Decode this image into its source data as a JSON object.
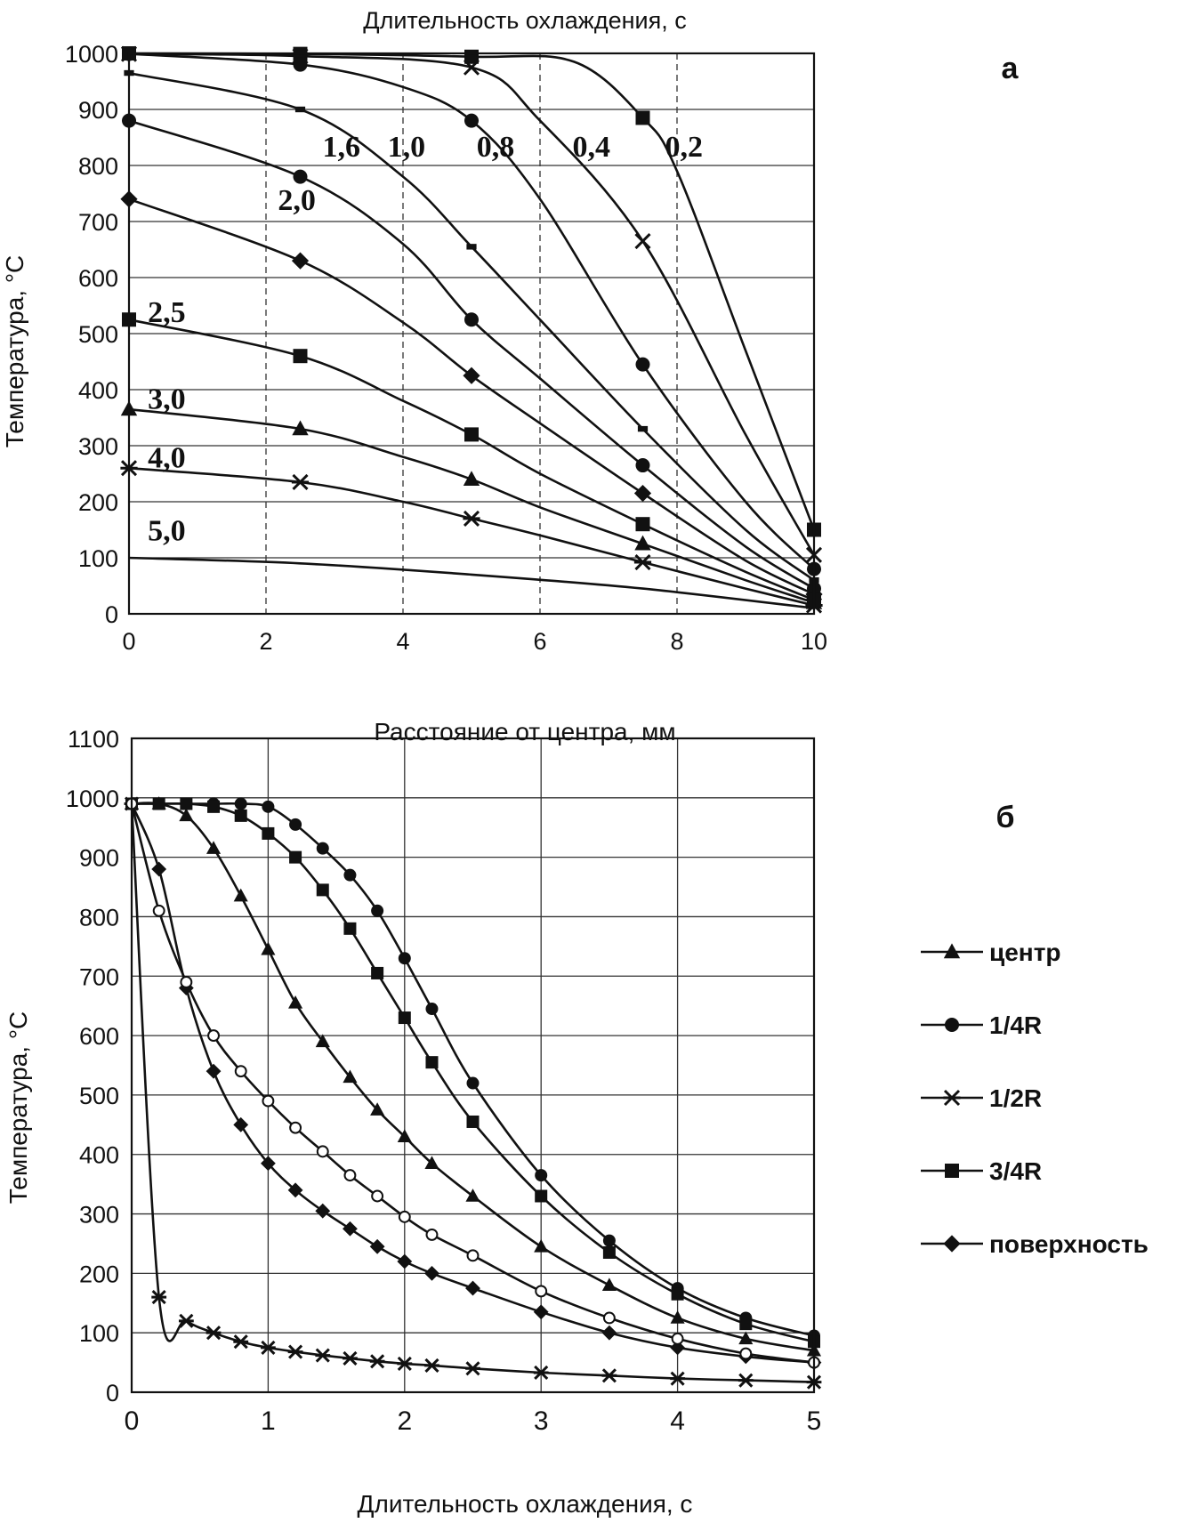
{
  "chart_data": [
    {
      "id": "a",
      "type": "line",
      "panel_label": "а",
      "title": "Длительность охлаждения, с",
      "xlabel": "Расстояние от центра, мм",
      "ylabel": "Температура, °C",
      "xlim": [
        0,
        10
      ],
      "ylim": [
        0,
        1000
      ],
      "xticks": [
        "0",
        "2",
        "4",
        "6",
        "8",
        "10"
      ],
      "yticks": [
        "0",
        "100",
        "200",
        "300",
        "400",
        "500",
        "600",
        "700",
        "800",
        "900",
        "1000"
      ],
      "grid": "dashed-vertical-solid-horizontal",
      "curve_labels": [
        "0,2",
        "0,4",
        "0,8",
        "1,0",
        "1,6",
        "2,0",
        "2,5",
        "3,0",
        "4,0",
        "5,0"
      ],
      "series": [
        {
          "label": "0,2",
          "x": [
            0,
            2.5,
            5,
            6.5,
            7.5,
            8,
            9,
            10
          ],
          "y": [
            1000,
            999,
            994,
            985,
            885,
            790,
            470,
            150
          ],
          "marker": "square"
        },
        {
          "label": "0,4",
          "x": [
            0,
            2.5,
            5,
            6,
            7.5,
            9,
            10
          ],
          "y": [
            999,
            995,
            975,
            880,
            665,
            320,
            105
          ],
          "marker": "x"
        },
        {
          "label": "0,8",
          "x": [
            0,
            2.5,
            4,
            5,
            6,
            7.5,
            9,
            10
          ],
          "y": [
            999,
            980,
            940,
            880,
            740,
            445,
            200,
            80
          ],
          "marker": "circle"
        },
        {
          "label": "1,0",
          "x": [
            0,
            2.5,
            4,
            5,
            6,
            7.5,
            9,
            10
          ],
          "y": [
            965,
            900,
            780,
            655,
            525,
            330,
            150,
            60
          ],
          "marker": "dash"
        },
        {
          "label": "1,6",
          "x": [
            0,
            2.5,
            4,
            5,
            6,
            7.5,
            9,
            10
          ],
          "y": [
            880,
            780,
            660,
            525,
            420,
            265,
            120,
            45
          ],
          "marker": "circle"
        },
        {
          "label": "2,0",
          "x": [
            0,
            2.5,
            4,
            5,
            6,
            7.5,
            9,
            10
          ],
          "y": [
            740,
            630,
            520,
            425,
            340,
            215,
            95,
            35
          ],
          "marker": "diamond"
        },
        {
          "label": "2,5",
          "x": [
            0,
            2.5,
            4,
            5,
            6,
            7.5,
            9,
            10
          ],
          "y": [
            525,
            460,
            380,
            320,
            250,
            160,
            75,
            25
          ],
          "marker": "square"
        },
        {
          "label": "3,0",
          "x": [
            0,
            2.5,
            4,
            5,
            6,
            7.5,
            9,
            10
          ],
          "y": [
            365,
            330,
            280,
            240,
            190,
            125,
            60,
            20
          ],
          "marker": "triangle"
        },
        {
          "label": "4,0",
          "x": [
            0,
            2.5,
            4,
            5,
            6,
            7.5,
            9,
            10
          ],
          "y": [
            260,
            235,
            200,
            170,
            140,
            92,
            45,
            15
          ],
          "marker": "asterisk"
        },
        {
          "label": "5,0",
          "x": [
            0,
            2.5,
            5,
            7.5,
            10
          ],
          "y": [
            100,
            90,
            70,
            45,
            10
          ],
          "marker": "none"
        }
      ]
    },
    {
      "id": "b",
      "type": "line",
      "panel_label": "б",
      "xlabel": "Длительность охлаждения, с",
      "ylabel": "Температура, °C",
      "xlim": [
        0,
        5
      ],
      "ylim": [
        0,
        1100
      ],
      "xticks": [
        "0",
        "1",
        "2",
        "3",
        "4",
        "5"
      ],
      "yticks": [
        "0",
        "100",
        "200",
        "300",
        "400",
        "500",
        "600",
        "700",
        "800",
        "900",
        "1000",
        "1100"
      ],
      "grid": "solid",
      "legend_position": "right",
      "series": [
        {
          "name": "центр",
          "marker": "triangle",
          "x": [
            0,
            0.2,
            0.4,
            0.6,
            0.8,
            1.0,
            1.2,
            1.4,
            1.6,
            1.8,
            2.0,
            2.2,
            2.5,
            3.0,
            3.5,
            4.0,
            4.5,
            5.0
          ],
          "y": [
            990,
            990,
            970,
            915,
            835,
            745,
            655,
            590,
            530,
            475,
            430,
            385,
            330,
            245,
            180,
            125,
            90,
            70
          ]
        },
        {
          "name": "1/4R",
          "marker": "circle",
          "x": [
            0,
            0.2,
            0.4,
            0.6,
            0.8,
            1.0,
            1.2,
            1.4,
            1.6,
            1.8,
            2.0,
            2.2,
            2.5,
            3.0,
            3.5,
            4.0,
            4.5,
            5.0
          ],
          "y": [
            990,
            990,
            990,
            990,
            990,
            985,
            955,
            915,
            870,
            810,
            730,
            645,
            520,
            365,
            255,
            175,
            125,
            95
          ]
        },
        {
          "name": "1/2R",
          "marker": "asterisk",
          "x": [
            0,
            0.2,
            0.4,
            0.6,
            0.8,
            1.0,
            1.2,
            1.4,
            1.6,
            1.8,
            2.0,
            2.2,
            2.5,
            3.0,
            3.5,
            4.0,
            4.5,
            5.0
          ],
          "y": [
            990,
            160,
            120,
            100,
            85,
            75,
            68,
            62,
            57,
            52,
            48,
            45,
            40,
            33,
            28,
            23,
            20,
            17
          ]
        },
        {
          "name": "3/4R",
          "marker": "square",
          "x": [
            0,
            0.2,
            0.4,
            0.6,
            0.8,
            1.0,
            1.2,
            1.4,
            1.6,
            1.8,
            2.0,
            2.2,
            2.5,
            3.0,
            3.5,
            4.0,
            4.5,
            5.0
          ],
          "y": [
            990,
            990,
            990,
            985,
            970,
            940,
            900,
            845,
            780,
            705,
            630,
            555,
            455,
            330,
            235,
            165,
            115,
            85
          ]
        },
        {
          "name": "поверхность",
          "marker": "diamond",
          "x": [
            0,
            0.2,
            0.4,
            0.6,
            0.8,
            1.0,
            1.2,
            1.4,
            1.6,
            1.8,
            2.0,
            2.2,
            2.5,
            3.0,
            3.5,
            4.0,
            4.5,
            5.0
          ],
          "y": [
            990,
            880,
            680,
            540,
            450,
            385,
            340,
            305,
            275,
            245,
            220,
            200,
            175,
            135,
            100,
            75,
            60,
            50
          ]
        },
        {
          "name": "",
          "marker": "open-circle",
          "x": [
            0,
            0.2,
            0.4,
            0.6,
            0.8,
            1.0,
            1.2,
            1.4,
            1.6,
            1.8,
            2.0,
            2.2,
            2.5,
            3.0,
            3.5,
            4.0,
            4.5,
            5.0
          ],
          "y": [
            990,
            810,
            690,
            600,
            540,
            490,
            445,
            405,
            365,
            330,
            295,
            265,
            230,
            170,
            125,
            90,
            65,
            50
          ]
        }
      ]
    }
  ]
}
